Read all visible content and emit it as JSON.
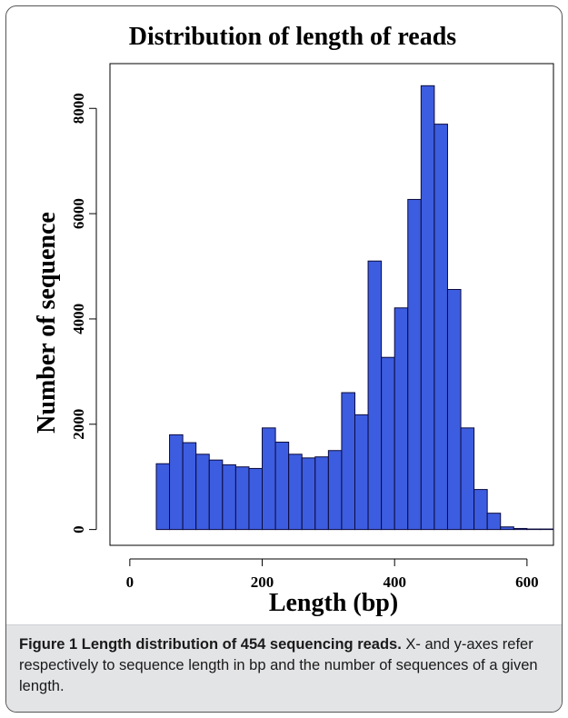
{
  "chart_data": {
    "type": "bar",
    "title": "Distribution of length of reads",
    "xlabel": "Length (bp)",
    "ylabel": "Number of sequence",
    "xlim": [
      -30,
      640
    ],
    "ylim": [
      -300,
      8850
    ],
    "xticks": [
      0,
      200,
      400,
      600
    ],
    "yticks": [
      0,
      2000,
      4000,
      6000,
      8000
    ],
    "bin_width": 20,
    "bins_start": [
      40,
      60,
      80,
      100,
      120,
      140,
      160,
      180,
      200,
      220,
      240,
      260,
      280,
      300,
      320,
      340,
      360,
      380,
      400,
      420,
      440,
      460,
      480,
      500,
      520,
      540,
      560,
      580,
      600,
      620
    ],
    "values": [
      1250,
      1800,
      1650,
      1430,
      1320,
      1230,
      1190,
      1160,
      1930,
      1660,
      1430,
      1360,
      1380,
      1500,
      2600,
      2180,
      5100,
      3270,
      4210,
      6270,
      8430,
      7700,
      4560,
      1930,
      760,
      310,
      50,
      20,
      10,
      10
    ],
    "bar_color": "#3d5de0",
    "bar_edge_color": "#0a0a3c",
    "grid": false,
    "legend": "none"
  },
  "caption": {
    "title": "Figure 1 Length distribution of 454 sequencing reads.",
    "text": " X- and y-axes refer respectively to sequence length in bp and the number of sequences of a given length."
  }
}
